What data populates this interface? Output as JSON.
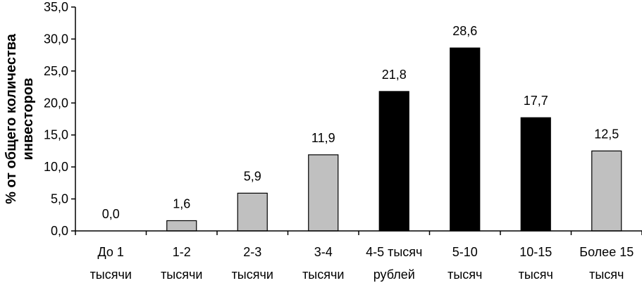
{
  "chart_data": {
    "type": "bar",
    "title": "",
    "xlabel": "",
    "ylabel": "% от общего количества инвесторов",
    "ylabel_lines": [
      "% от общего количества",
      "инвесторов"
    ],
    "ylim": [
      0,
      35
    ],
    "yticks": [
      "0,0",
      "5,0",
      "10,0",
      "15,0",
      "20,0",
      "25,0",
      "30,0",
      "35,0"
    ],
    "ytick_values": [
      0,
      5,
      10,
      15,
      20,
      25,
      30,
      35
    ],
    "categories": [
      [
        "До 1",
        "тысячи"
      ],
      [
        "1-2",
        "тысячи"
      ],
      [
        "2-3",
        "тысячи"
      ],
      [
        "3-4",
        "тысячи"
      ],
      [
        "4-5 тысяч",
        "рублей"
      ],
      [
        "5-10",
        "тысяч"
      ],
      [
        "10-15",
        "тысяч"
      ],
      [
        "Более 15",
        "тысяч"
      ]
    ],
    "values": [
      0.0,
      1.6,
      5.9,
      11.9,
      21.8,
      28.6,
      17.7,
      12.5
    ],
    "value_labels": [
      "0,0",
      "1,6",
      "5,9",
      "11,9",
      "21,8",
      "28,6",
      "17,7",
      "12,5"
    ],
    "bar_colors": [
      "#c0c0c0",
      "#c0c0c0",
      "#c0c0c0",
      "#c0c0c0",
      "#000000",
      "#000000",
      "#000000",
      "#c0c0c0"
    ],
    "grid": false,
    "legend": "none"
  }
}
